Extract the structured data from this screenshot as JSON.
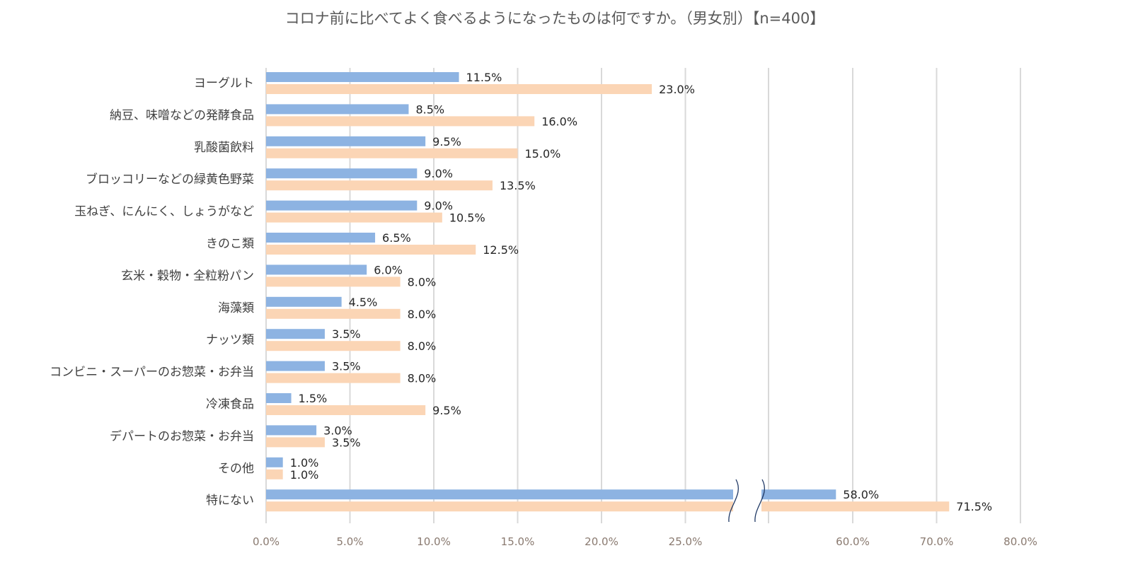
{
  "chart_data": {
    "type": "bar",
    "orientation": "horizontal",
    "title": "コロナ前に比べてよく食べるようになったものは何ですか。（男女別）【n=400】",
    "xlabel": "",
    "ylabel": "",
    "categories": [
      "ヨーグルト",
      "納豆、味噌などの発酵食品",
      "乳酸菌飲料",
      "ブロッコリーなどの緑黄色野菜",
      "玉ねぎ、にんにく、しょうがなど",
      "きのこ類",
      "玄米・穀物・全粒粉パン",
      "海藻類",
      "ナッツ類",
      "コンビニ・スーパーのお惣菜・お弁当",
      "冷凍食品",
      "デパートのお惣菜・お弁当",
      "その他",
      "特にない"
    ],
    "series": [
      {
        "color": "#8DB3E2",
        "values": [
          11.5,
          8.5,
          9.5,
          9.0,
          9.0,
          6.5,
          6.0,
          4.5,
          3.5,
          3.5,
          1.5,
          3.0,
          1.0,
          58.0
        ]
      },
      {
        "color": "#FBD5B5",
        "values": [
          23.0,
          16.0,
          15.0,
          13.5,
          10.5,
          12.5,
          8.0,
          8.0,
          8.0,
          8.0,
          9.5,
          3.5,
          1.0,
          71.5
        ]
      }
    ],
    "value_labels": [
      [
        "11.5%",
        "8.5%",
        "9.5%",
        "9.0%",
        "9.0%",
        "6.5%",
        "6.0%",
        "4.5%",
        "3.5%",
        "3.5%",
        "1.5%",
        "3.0%",
        "1.0%",
        "58.0%"
      ],
      [
        "23.0%",
        "16.0%",
        "15.0%",
        "13.5%",
        "10.5%",
        "12.5%",
        "8.0%",
        "8.0%",
        "8.0%",
        "8.0%",
        "9.5%",
        "3.5%",
        "1.0%",
        "71.5%"
      ]
    ],
    "xticks": [
      "0.0%",
      "5.0%",
      "10.0%",
      "15.0%",
      "20.0%",
      "25.0%",
      "60.0%",
      "70.0%",
      "80.0%"
    ],
    "xtick_values": [
      0,
      5,
      10,
      15,
      20,
      25,
      60,
      70,
      80
    ],
    "xlim": [
      0,
      80
    ],
    "axis_break": [
      27.5,
      52.5
    ],
    "grid": true,
    "legend": "none"
  }
}
